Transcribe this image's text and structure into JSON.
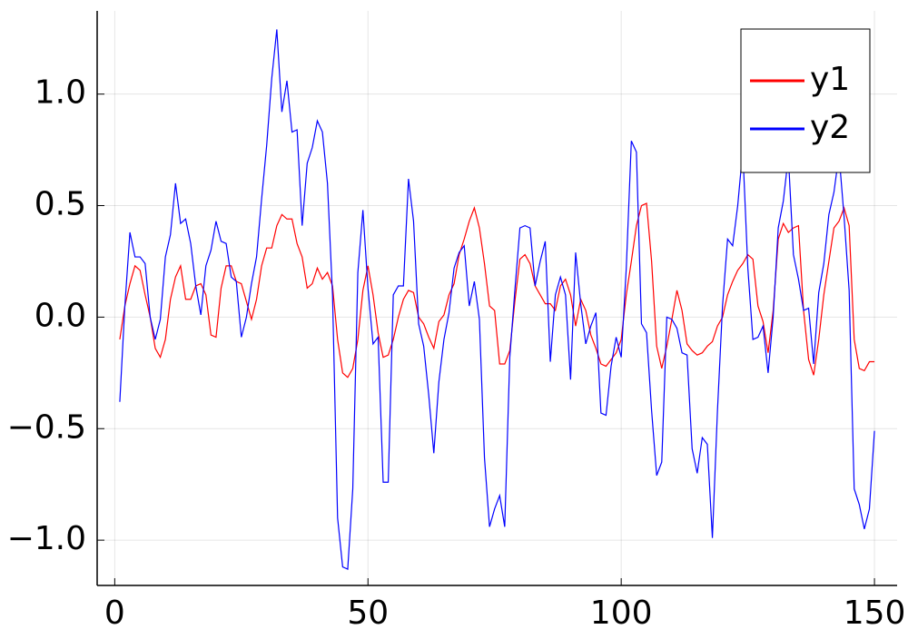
{
  "chart_data": {
    "type": "line",
    "x": [
      1,
      2,
      3,
      4,
      5,
      6,
      7,
      8,
      9,
      10,
      11,
      12,
      13,
      14,
      15,
      16,
      17,
      18,
      19,
      20,
      21,
      22,
      23,
      24,
      25,
      26,
      27,
      28,
      29,
      30,
      31,
      32,
      33,
      34,
      35,
      36,
      37,
      38,
      39,
      40,
      41,
      42,
      43,
      44,
      45,
      46,
      47,
      48,
      49,
      50,
      51,
      52,
      53,
      54,
      55,
      56,
      57,
      58,
      59,
      60,
      61,
      62,
      63,
      64,
      65,
      66,
      67,
      68,
      69,
      70,
      71,
      72,
      73,
      74,
      75,
      76,
      77,
      78,
      79,
      80,
      81,
      82,
      83,
      84,
      85,
      86,
      87,
      88,
      89,
      90,
      91,
      92,
      93,
      94,
      95,
      96,
      97,
      98,
      99,
      100,
      101,
      102,
      103,
      104,
      105,
      106,
      107,
      108,
      109,
      110,
      111,
      112,
      113,
      114,
      115,
      116,
      117,
      118,
      119,
      120,
      121,
      122,
      123,
      124,
      125,
      126,
      127,
      128,
      129,
      130,
      131,
      132,
      133,
      134,
      135,
      136,
      137,
      138,
      139,
      140,
      141,
      142,
      143,
      144,
      145,
      146,
      147,
      148,
      149,
      150
    ],
    "series": [
      {
        "name": "y1",
        "color": "#ff0000",
        "values": [
          -0.1,
          0.05,
          0.15,
          0.23,
          0.21,
          0.1,
          0.0,
          -0.14,
          -0.18,
          -0.1,
          0.08,
          0.18,
          0.23,
          0.08,
          0.08,
          0.14,
          0.15,
          0.1,
          -0.08,
          -0.09,
          0.13,
          0.23,
          0.23,
          0.16,
          0.15,
          0.07,
          -0.01,
          0.08,
          0.23,
          0.31,
          0.31,
          0.41,
          0.46,
          0.44,
          0.44,
          0.33,
          0.27,
          0.13,
          0.15,
          0.22,
          0.17,
          0.2,
          0.14,
          -0.1,
          -0.25,
          -0.27,
          -0.23,
          -0.1,
          0.12,
          0.23,
          0.1,
          -0.07,
          -0.18,
          -0.17,
          -0.1,
          0.0,
          0.08,
          0.12,
          0.11,
          0.0,
          -0.03,
          -0.09,
          -0.14,
          -0.02,
          0.01,
          0.1,
          0.15,
          0.28,
          0.35,
          0.43,
          0.49,
          0.4,
          0.24,
          0.05,
          0.03,
          -0.21,
          -0.21,
          -0.15,
          0.07,
          0.26,
          0.28,
          0.24,
          0.14,
          0.1,
          0.06,
          0.06,
          0.03,
          0.14,
          0.17,
          0.1,
          -0.04,
          0.08,
          0.03,
          -0.08,
          -0.14,
          -0.21,
          -0.22,
          -0.19,
          -0.16,
          -0.1,
          0.1,
          0.25,
          0.41,
          0.5,
          0.51,
          0.25,
          -0.13,
          -0.23,
          -0.13,
          -0.01,
          0.12,
          0.03,
          -0.12,
          -0.15,
          -0.17,
          -0.16,
          -0.13,
          -0.11,
          -0.04,
          0.0,
          0.1,
          0.16,
          0.21,
          0.24,
          0.28,
          0.26,
          0.05,
          -0.02,
          -0.16,
          0.03,
          0.35,
          0.42,
          0.38,
          0.4,
          0.41,
          0.03,
          -0.19,
          -0.26,
          -0.1,
          0.1,
          0.25,
          0.4,
          0.43,
          0.49,
          0.41,
          -0.1,
          -0.23,
          -0.24,
          -0.2,
          -0.2
        ]
      },
      {
        "name": "y2",
        "color": "#0000ff",
        "values": [
          -0.38,
          0.05,
          0.38,
          0.27,
          0.27,
          0.24,
          0.0,
          -0.1,
          -0.01,
          0.27,
          0.37,
          0.6,
          0.42,
          0.44,
          0.33,
          0.14,
          0.01,
          0.23,
          0.3,
          0.43,
          0.34,
          0.33,
          0.18,
          0.16,
          -0.09,
          0.0,
          0.15,
          0.27,
          0.53,
          0.77,
          1.07,
          1.29,
          0.92,
          1.06,
          0.83,
          0.84,
          0.41,
          0.69,
          0.76,
          0.88,
          0.83,
          0.6,
          0.1,
          -0.9,
          -1.12,
          -1.13,
          -0.77,
          0.2,
          0.48,
          0.13,
          -0.12,
          -0.09,
          -0.74,
          -0.74,
          0.1,
          0.14,
          0.14,
          0.62,
          0.43,
          -0.03,
          -0.13,
          -0.35,
          -0.61,
          -0.29,
          -0.1,
          0.02,
          0.22,
          0.29,
          0.32,
          0.05,
          0.16,
          -0.01,
          -0.63,
          -0.94,
          -0.86,
          -0.8,
          -0.94,
          -0.18,
          0.12,
          0.4,
          0.41,
          0.4,
          0.14,
          0.25,
          0.34,
          -0.2,
          0.1,
          0.18,
          0.1,
          -0.28,
          0.29,
          0.06,
          -0.12,
          -0.04,
          0.02,
          -0.43,
          -0.44,
          -0.22,
          -0.09,
          -0.18,
          0.22,
          0.79,
          0.74,
          -0.03,
          -0.07,
          -0.42,
          -0.71,
          -0.65,
          0.0,
          -0.01,
          -0.05,
          -0.16,
          -0.17,
          -0.59,
          -0.7,
          -0.54,
          -0.57,
          -0.99,
          -0.42,
          0.05,
          0.35,
          0.32,
          0.5,
          0.75,
          0.22,
          -0.1,
          -0.09,
          -0.04,
          -0.25,
          0.0,
          0.4,
          0.52,
          0.72,
          0.28,
          0.17,
          0.03,
          0.04,
          -0.21,
          0.11,
          0.24,
          0.46,
          0.56,
          0.73,
          0.45,
          0.12,
          -0.77,
          -0.84,
          -0.95,
          -0.86,
          -0.51
        ]
      }
    ],
    "xlim": [
      -3.47,
      154.47
    ],
    "ylim": [
      -1.203,
      1.373
    ],
    "xticks": [
      0,
      50,
      100,
      150
    ],
    "yticks": [
      {
        "value": -1.0,
        "label": "−1.0"
      },
      {
        "value": -0.5,
        "label": "−0.5"
      },
      {
        "value": 0.0,
        "label": "0.0"
      },
      {
        "value": 0.5,
        "label": "0.5"
      },
      {
        "value": 1.0,
        "label": "1.0"
      }
    ],
    "grid": true,
    "legend": "top-right"
  }
}
